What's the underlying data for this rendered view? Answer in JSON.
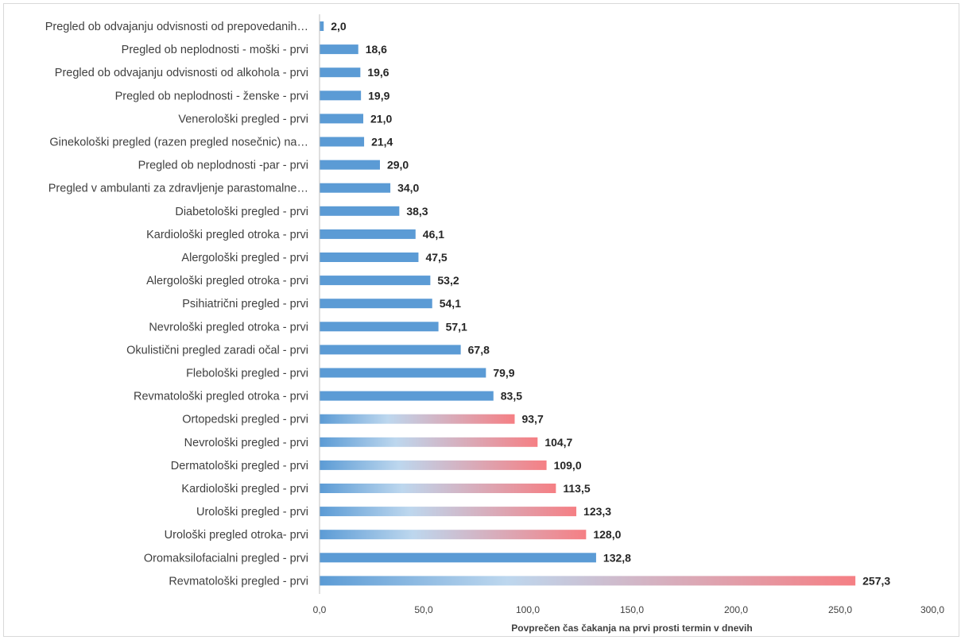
{
  "colors": {
    "bar_blue": "#5b9bd5",
    "gradient_start": "#5b9bd5",
    "gradient_mid": "#bdd7ee",
    "gradient_end": "#f57f84",
    "axis_line": "#bfbfbf",
    "label_text": "#404040",
    "value_text": "#262626"
  },
  "chart_data": {
    "type": "bar",
    "orientation": "horizontal",
    "title": "",
    "xlabel": "Povprečen čas čakanja na prvi prosti termin v dnevih",
    "ylabel": "",
    "xlim": [
      0,
      300
    ],
    "x_ticks": [
      "0,0",
      "50,0",
      "100,0",
      "150,0",
      "200,0",
      "250,0",
      "300,0"
    ],
    "x_tick_values": [
      0,
      50,
      100,
      150,
      200,
      250,
      300
    ],
    "grid": false,
    "legend": "none",
    "categories": [
      "Pregled ob odvajanju odvisnosti od prepovedanih…",
      "Pregled ob neplodnosti - moški - prvi",
      "Pregled ob odvajanju odvisnosti od alkohola - prvi",
      "Pregled ob neplodnosti - ženske - prvi",
      "Venerološki pregled - prvi",
      "Ginekološki pregled (razen pregled nosečnic) na…",
      "Pregled ob neplodnosti -par - prvi",
      "Pregled v ambulanti za zdravljenje parastomalne…",
      "Diabetološki pregled - prvi",
      "Kardiološki pregled otroka - prvi",
      "Alergološki pregled - prvi",
      "Alergološki pregled otroka - prvi",
      "Psihiatrični pregled - prvi",
      "Nevrološki pregled otroka - prvi",
      "Okulistični pregled zaradi očal - prvi",
      "Flebološki pregled - prvi",
      "Revmatološki pregled otroka - prvi",
      "Ortopedski pregled - prvi",
      "Nevrološki pregled - prvi",
      "Dermatološki pregled - prvi",
      "Kardiološki pregled - prvi",
      "Urološki pregled - prvi",
      "Urološki pregled otroka- prvi",
      "Oromaksilofacialni pregled - prvi",
      "Revmatološki pregled - prvi"
    ],
    "values": [
      2.0,
      18.6,
      19.6,
      19.9,
      21.0,
      21.4,
      29.0,
      34.0,
      38.3,
      46.1,
      47.5,
      53.2,
      54.1,
      57.1,
      67.8,
      79.9,
      83.5,
      93.7,
      104.7,
      109.0,
      113.5,
      123.3,
      128.0,
      132.8,
      257.3
    ],
    "value_labels": [
      "2,0",
      "18,6",
      "19,6",
      "19,9",
      "21,0",
      "21,4",
      "29,0",
      "34,0",
      "38,3",
      "46,1",
      "47,5",
      "53,2",
      "54,1",
      "57,1",
      "67,8",
      "79,9",
      "83,5",
      "93,7",
      "104,7",
      "109,0",
      "113,5",
      "123,3",
      "128,0",
      "132,8",
      "257,3"
    ],
    "bar_styles": [
      "solid",
      "solid",
      "solid",
      "solid",
      "solid",
      "solid",
      "solid",
      "solid",
      "solid",
      "solid",
      "solid",
      "solid",
      "solid",
      "solid",
      "solid",
      "solid",
      "solid",
      "gradient",
      "gradient",
      "gradient",
      "gradient",
      "gradient",
      "gradient",
      "solid",
      "gradient"
    ]
  }
}
